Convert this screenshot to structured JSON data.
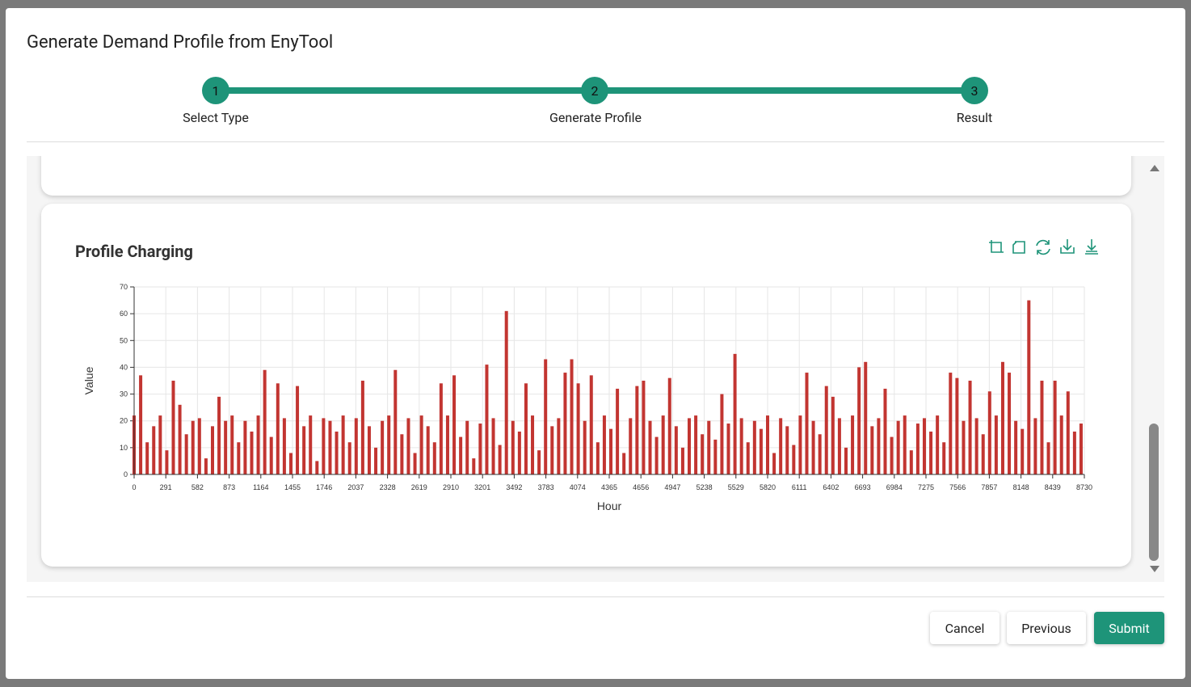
{
  "header": {
    "title": "Generate Demand Profile from EnyTool"
  },
  "stepper": {
    "steps": [
      {
        "number": 1,
        "label": "Select Type"
      },
      {
        "number": 2,
        "label": "Generate Profile"
      },
      {
        "number": 3,
        "label": "Result"
      }
    ]
  },
  "chart_data": {
    "type": "bar",
    "title": "Profile Charging",
    "x_label": "Hour",
    "y_label": "Value",
    "color": "#c23531",
    "grid": true,
    "xlim": [
      0,
      8730
    ],
    "ylim": [
      0,
      70
    ],
    "xticks": [
      0,
      291,
      582,
      873,
      1164,
      1455,
      1746,
      2037,
      2328,
      2619,
      2910,
      3201,
      3492,
      3783,
      4074,
      4365,
      4656,
      4947,
      5238,
      5529,
      5820,
      6111,
      6402,
      6693,
      6984,
      7275,
      7566,
      7857,
      8148,
      8439,
      8730
    ],
    "yticks": [
      0,
      10,
      20,
      30,
      40,
      50,
      60,
      70
    ],
    "x": [
      0,
      60,
      120,
      180,
      240,
      300,
      360,
      420,
      480,
      540,
      600,
      660,
      720,
      780,
      840,
      900,
      960,
      1020,
      1080,
      1140,
      1200,
      1260,
      1320,
      1380,
      1440,
      1500,
      1560,
      1620,
      1680,
      1740,
      1800,
      1860,
      1920,
      1980,
      2040,
      2100,
      2160,
      2220,
      2280,
      2340,
      2400,
      2460,
      2520,
      2580,
      2640,
      2700,
      2760,
      2820,
      2880,
      2940,
      3000,
      3060,
      3120,
      3180,
      3240,
      3300,
      3360,
      3420,
      3480,
      3540,
      3600,
      3660,
      3720,
      3780,
      3840,
      3900,
      3960,
      4020,
      4080,
      4140,
      4200,
      4260,
      4320,
      4380,
      4440,
      4500,
      4560,
      4620,
      4680,
      4740,
      4800,
      4860,
      4920,
      4980,
      5040,
      5100,
      5160,
      5220,
      5280,
      5340,
      5400,
      5460,
      5520,
      5580,
      5640,
      5700,
      5760,
      5820,
      5880,
      5940,
      6000,
      6060,
      6120,
      6180,
      6240,
      6300,
      6360,
      6420,
      6480,
      6540,
      6600,
      6660,
      6720,
      6780,
      6840,
      6900,
      6960,
      7020,
      7080,
      7140,
      7200,
      7260,
      7320,
      7380,
      7440,
      7500,
      7560,
      7620,
      7680,
      7740,
      7800,
      7860,
      7920,
      7980,
      8040,
      8100,
      8160,
      8220,
      8280,
      8340,
      8400,
      8460,
      8520,
      8580,
      8640,
      8700
    ],
    "values": [
      22,
      37,
      12,
      18,
      22,
      9,
      35,
      26,
      15,
      20,
      21,
      6,
      18,
      29,
      20,
      22,
      12,
      20,
      16,
      22,
      39,
      14,
      34,
      21,
      8,
      33,
      18,
      22,
      5,
      21,
      20,
      16,
      22,
      12,
      21,
      35,
      18,
      10,
      20,
      22,
      39,
      15,
      21,
      8,
      22,
      18,
      12,
      34,
      22,
      37,
      14,
      20,
      6,
      19,
      41,
      21,
      11,
      61,
      20,
      16,
      34,
      22,
      9,
      43,
      18,
      21,
      38,
      43,
      34,
      20,
      37,
      12,
      22,
      17,
      32,
      8,
      21,
      33,
      35,
      20,
      14,
      22,
      36,
      18,
      10,
      21,
      22,
      15,
      20,
      13,
      30,
      19,
      45,
      21,
      12,
      20,
      17,
      22,
      8,
      21,
      18,
      11,
      22,
      38,
      20,
      15,
      33,
      29,
      21,
      10,
      22,
      40,
      42,
      18,
      21,
      32,
      14,
      20,
      22,
      9,
      19,
      21,
      16,
      22,
      12,
      38,
      36,
      20,
      35,
      21,
      15,
      31,
      22,
      42,
      38,
      20,
      17,
      65,
      21,
      35,
      12,
      35,
      22,
      31,
      16,
      19
    ]
  },
  "footer": {
    "buttons": [
      "Cancel",
      "Previous",
      "Submit"
    ]
  }
}
